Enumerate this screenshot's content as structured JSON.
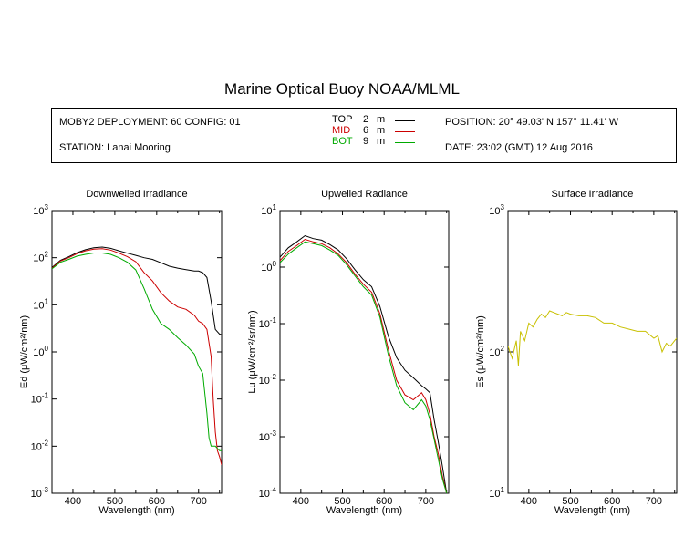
{
  "title": "Marine Optical Buoy NOAA/MLML",
  "info": {
    "deployment": "MOBY2 DEPLOYMENT: 60 CONFIG: 01",
    "station": "STATION: Lanai Mooring",
    "position": "POSITION: 20° 49.03' N   157° 11.41' W",
    "date": "DATE: 23:02 (GMT) 12 Aug 2016",
    "legend": [
      {
        "name": "TOP",
        "depth": "2",
        "unit": "m",
        "color": "#000000"
      },
      {
        "name": "MID",
        "depth": "6",
        "unit": "m",
        "color": "#cc0000"
      },
      {
        "name": "BOT",
        "depth": "9",
        "unit": "m",
        "color": "#00aa00"
      }
    ]
  },
  "chart_data": [
    {
      "type": "line",
      "title": "Downwelled Irradiance",
      "xlabel": "Wavelength (nm)",
      "ylabel": "Ed  (μW/cm²/nm)",
      "xlim": [
        350,
        755
      ],
      "ylim": [
        0.001,
        1000
      ],
      "yscale": "log",
      "xticks": [
        "400",
        "500",
        "600",
        "700"
      ],
      "yticks": [
        {
          "base": "10",
          "exp": "-3"
        },
        {
          "base": "10",
          "exp": "-2"
        },
        {
          "base": "10",
          "exp": "-1"
        },
        {
          "base": "10",
          "exp": "0"
        },
        {
          "base": "10",
          "exp": "1"
        },
        {
          "base": "10",
          "exp": "2"
        },
        {
          "base": "10",
          "exp": "3"
        }
      ],
      "series": [
        {
          "name": "TOP",
          "color": "#000000",
          "x": [
            350,
            370,
            390,
            410,
            430,
            450,
            470,
            490,
            510,
            530,
            550,
            570,
            590,
            610,
            630,
            650,
            670,
            690,
            700,
            710,
            720,
            730,
            740,
            750,
            755
          ],
          "y": [
            62,
            88,
            105,
            128,
            148,
            162,
            168,
            158,
            140,
            125,
            112,
            100,
            92,
            78,
            66,
            60,
            56,
            52,
            52,
            48,
            38,
            12,
            3,
            2.4,
            2.3
          ]
        },
        {
          "name": "MID",
          "color": "#cc0000",
          "x": [
            350,
            370,
            390,
            410,
            430,
            450,
            470,
            490,
            510,
            530,
            550,
            570,
            590,
            610,
            630,
            650,
            670,
            690,
            700,
            710,
            720,
            730,
            735,
            740,
            745,
            750,
            755
          ],
          "y": [
            60,
            85,
            100,
            122,
            140,
            152,
            155,
            145,
            125,
            105,
            82,
            48,
            32,
            18,
            12,
            9,
            8,
            6,
            4.5,
            4,
            3,
            0.8,
            0.1,
            0.02,
            0.008,
            0.006,
            0.004
          ]
        },
        {
          "name": "BOT",
          "color": "#00aa00",
          "x": [
            350,
            370,
            390,
            410,
            430,
            450,
            470,
            490,
            510,
            530,
            550,
            570,
            590,
            610,
            630,
            650,
            670,
            690,
            700,
            710,
            720,
            725,
            730,
            740,
            750,
            755
          ],
          "y": [
            58,
            80,
            92,
            108,
            118,
            126,
            126,
            118,
            100,
            80,
            55,
            22,
            8,
            4,
            3,
            2,
            1.4,
            0.9,
            0.5,
            0.35,
            0.05,
            0.015,
            0.01,
            0.01,
            0.008,
            0.008
          ]
        }
      ]
    },
    {
      "type": "line",
      "title": "Upwelled Radiance",
      "xlabel": "Wavelength (nm)",
      "ylabel": "Lu  (μW/cm²/sr/nm)",
      "xlim": [
        350,
        755
      ],
      "ylim": [
        0.0001,
        10
      ],
      "yscale": "log",
      "xticks": [
        "400",
        "500",
        "600",
        "700"
      ],
      "yticks": [
        {
          "base": "10",
          "exp": "-4"
        },
        {
          "base": "10",
          "exp": "-3"
        },
        {
          "base": "10",
          "exp": "-2"
        },
        {
          "base": "10",
          "exp": "-1"
        },
        {
          "base": "10",
          "exp": "0"
        },
        {
          "base": "10",
          "exp": "1"
        }
      ],
      "series": [
        {
          "name": "TOP",
          "color": "#000000",
          "x": [
            350,
            370,
            390,
            410,
            430,
            450,
            470,
            490,
            510,
            530,
            550,
            570,
            590,
            610,
            630,
            650,
            670,
            690,
            700,
            710,
            720,
            730,
            740,
            750
          ],
          "y": [
            1.5,
            2.2,
            2.8,
            3.6,
            3.2,
            3.0,
            2.5,
            2.0,
            1.4,
            0.9,
            0.6,
            0.45,
            0.2,
            0.06,
            0.025,
            0.015,
            0.011,
            0.008,
            0.007,
            0.006,
            0.002,
            0.0008,
            0.0003,
            0.0001
          ]
        },
        {
          "name": "MID",
          "color": "#cc0000",
          "x": [
            350,
            370,
            390,
            410,
            430,
            450,
            470,
            490,
            510,
            530,
            550,
            570,
            590,
            610,
            630,
            650,
            670,
            690,
            700,
            710,
            720,
            730,
            740,
            750
          ],
          "y": [
            1.3,
            1.9,
            2.4,
            3.1,
            2.8,
            2.6,
            2.2,
            1.7,
            1.2,
            0.75,
            0.5,
            0.36,
            0.15,
            0.035,
            0.01,
            0.0055,
            0.0045,
            0.006,
            0.0045,
            0.0025,
            0.001,
            0.0005,
            0.0002,
            0.0001
          ]
        },
        {
          "name": "BOT",
          "color": "#00aa00",
          "x": [
            350,
            370,
            390,
            410,
            430,
            450,
            470,
            490,
            510,
            530,
            550,
            570,
            590,
            610,
            630,
            650,
            670,
            690,
            700,
            710,
            720,
            730,
            740,
            750
          ],
          "y": [
            1.2,
            1.7,
            2.2,
            2.8,
            2.6,
            2.4,
            2.0,
            1.6,
            1.1,
            0.7,
            0.45,
            0.32,
            0.13,
            0.028,
            0.008,
            0.004,
            0.003,
            0.0045,
            0.0035,
            0.002,
            0.0009,
            0.0004,
            0.00018,
            0.0001
          ]
        }
      ]
    },
    {
      "type": "line",
      "title": "Surface Irradiance",
      "xlabel": "Wavelength (nm)",
      "ylabel": "Es  (μW/cm²/nm)",
      "xlim": [
        350,
        755
      ],
      "ylim": [
        10,
        1000
      ],
      "yscale": "log",
      "xticks": [
        "400",
        "500",
        "600",
        "700"
      ],
      "yticks": [
        {
          "base": "10",
          "exp": "1"
        },
        {
          "base": "10",
          "exp": "2"
        },
        {
          "base": "10",
          "exp": "3"
        }
      ],
      "series": [
        {
          "name": "Es",
          "color": "#c8c000",
          "x": [
            350,
            360,
            370,
            375,
            380,
            390,
            400,
            410,
            420,
            430,
            440,
            450,
            460,
            470,
            480,
            490,
            500,
            520,
            540,
            560,
            580,
            600,
            620,
            640,
            660,
            680,
            700,
            710,
            720,
            730,
            740,
            750,
            755
          ],
          "y": [
            110,
            90,
            120,
            80,
            140,
            120,
            160,
            150,
            170,
            185,
            175,
            195,
            190,
            185,
            180,
            190,
            185,
            180,
            180,
            175,
            160,
            160,
            150,
            145,
            140,
            140,
            125,
            130,
            100,
            115,
            110,
            120,
            125
          ]
        }
      ]
    }
  ]
}
